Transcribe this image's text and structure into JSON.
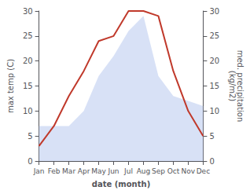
{
  "chart_data": {
    "type": "line",
    "categories": [
      "Jan",
      "Feb",
      "Mar",
      "Apr",
      "May",
      "Jun",
      "Jul",
      "Aug",
      "Sep",
      "Oct",
      "Nov",
      "Dec"
    ],
    "series": [
      {
        "type": "area",
        "axis": "y2",
        "color": "#b8c8ee",
        "values": [
          7,
          7,
          7,
          10,
          17,
          21,
          26,
          29,
          17,
          13,
          12,
          11
        ]
      },
      {
        "type": "line",
        "color": "#c0392b",
        "values": [
          3,
          7,
          13,
          18,
          24,
          25,
          30,
          30,
          29,
          18,
          10,
          5
        ]
      }
    ],
    "xlabel": "date (month)",
    "ylabel": "max temp (C)",
    "y2label": "med. precipitation\n(kg/m2)",
    "ylim": [
      0,
      30
    ],
    "yticks": [
      0,
      5,
      10,
      15,
      20,
      25,
      30
    ],
    "y2lim": [
      0,
      30
    ],
    "y2ticks": [
      0,
      5,
      10,
      15,
      20,
      25,
      30
    ],
    "grid": false
  }
}
